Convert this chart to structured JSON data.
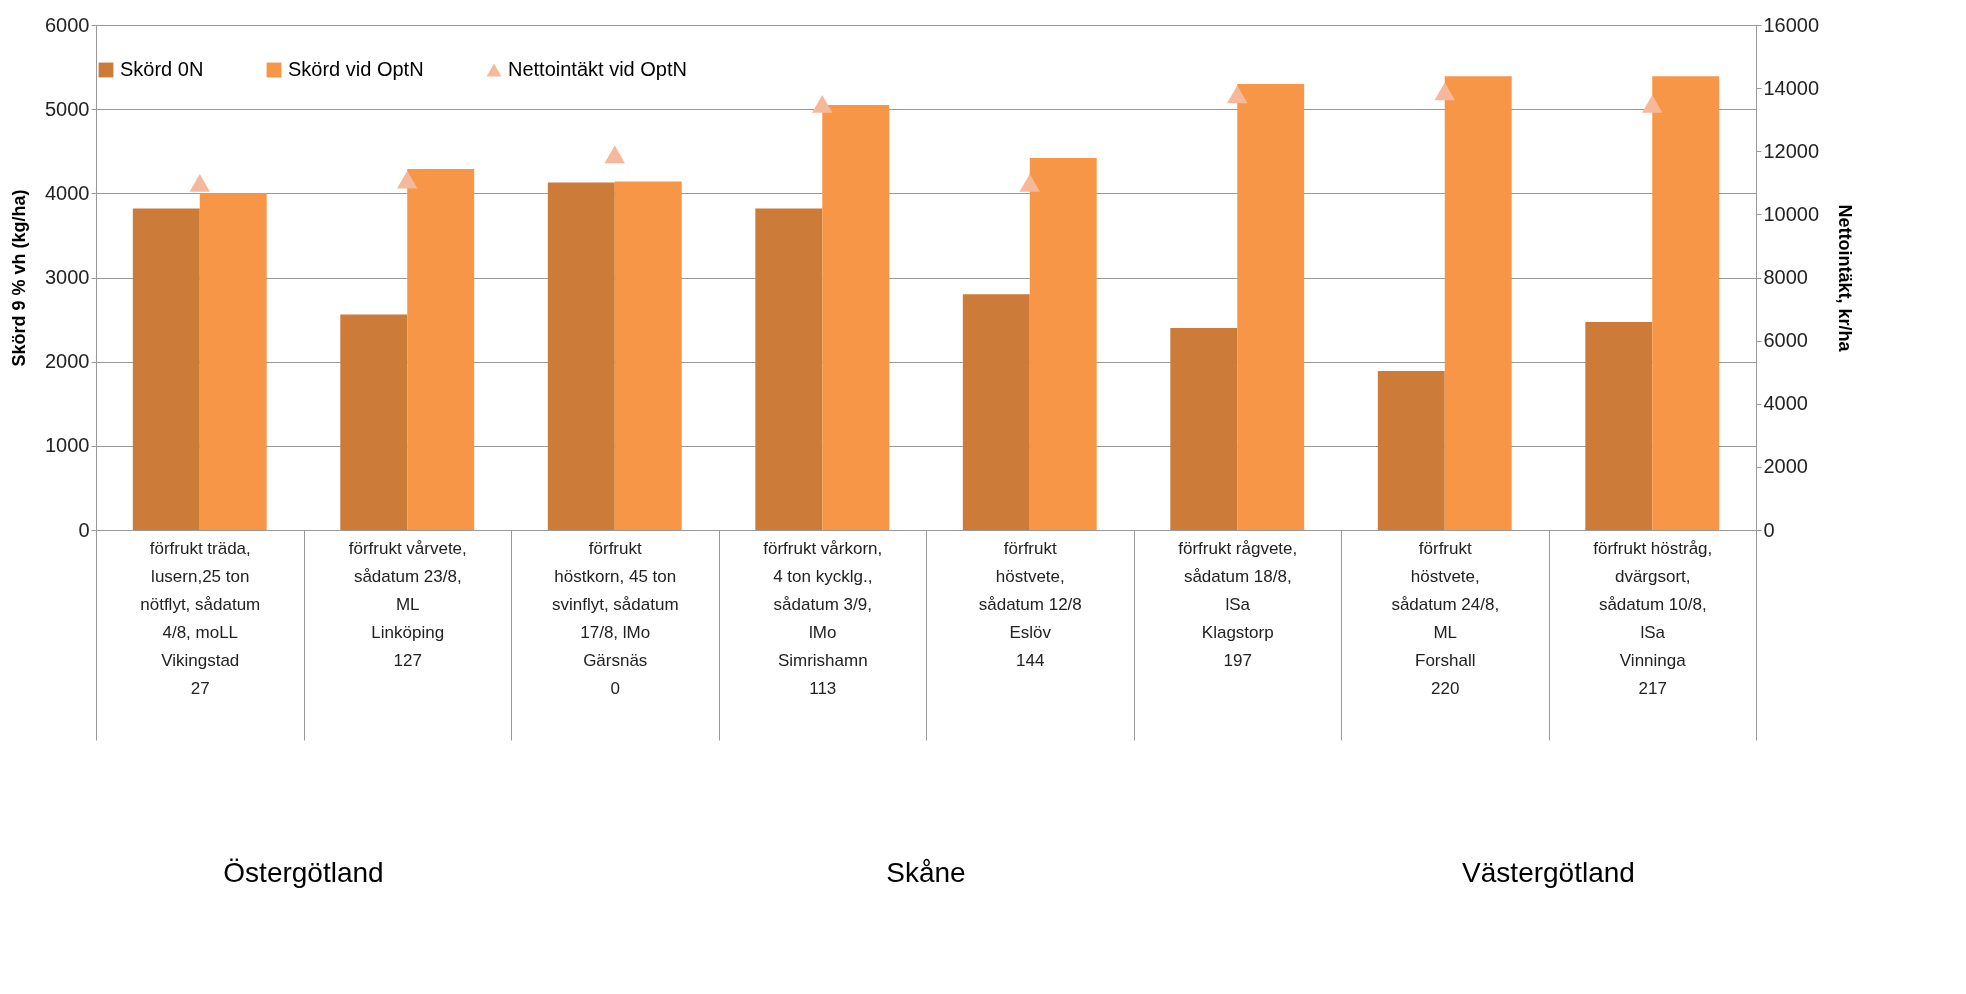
{
  "chart_data": {
    "type": "bar",
    "categories": [
      "förfrukt träda,\nlusern,25 ton\nnötflyt, sådatum\n4/8, moLL\nVikingstad\n27",
      "förfrukt vårvete,\nsådatum 23/8,\nML\nLinköping\n127",
      "förfrukt\nhöstkorn, 45 ton\nsvinflyt, sådatum\n17/8, lMo\nGärsnäs\n0",
      "förfrukt vårkorn,\n4 ton kycklg.,\nsådatum 3/9,\nlMo\nSimrishamn\n113",
      "förfrukt\nhöstvete,\nsådatum 12/8\nEslöv\n144",
      "förfrukt rågvete,\nsådatum 18/8,\nlSa\nKlagstorp\n197",
      "förfrukt\nhöstvete,\nsådatum 24/8,\nML\nForshall\n220",
      "förfrukt höstråg,\ndvärgsort,\nsådatum 10/8,\nlSa\nVinninga\n217"
    ],
    "series": [
      {
        "name": "Skörd 0N",
        "color": "#cc7b38",
        "values": [
          3820,
          2560,
          4130,
          3820,
          2800,
          2400,
          1890,
          2470
        ]
      },
      {
        "name": "Skörd vid OptN",
        "color": "#f79646",
        "values": [
          4000,
          4290,
          4140,
          5050,
          4420,
          5300,
          5390,
          5390
        ]
      },
      {
        "name": "Nettointäkt vid OptN",
        "type": "scatter",
        "axis": "y2",
        "color": "#f6b89a",
        "values": [
          11000,
          11100,
          11900,
          13500,
          11000,
          13800,
          13900,
          13500
        ]
      }
    ],
    "ylabel": "Skörd 9 % vh (kg/ha)",
    "y2label": "Nettointäkt, kr/ha",
    "ylim": [
      0,
      6000
    ],
    "yticks": [
      0,
      1000,
      2000,
      3000,
      4000,
      5000,
      6000
    ],
    "y2lim": [
      0,
      16000
    ],
    "y2ticks": [
      0,
      2000,
      4000,
      6000,
      8000,
      10000,
      12000,
      14000,
      16000
    ],
    "grid": "y",
    "legend": "top",
    "marker": "triangle",
    "annotations": [
      "Östergötland",
      "Skåne",
      "Västergötland"
    ]
  }
}
